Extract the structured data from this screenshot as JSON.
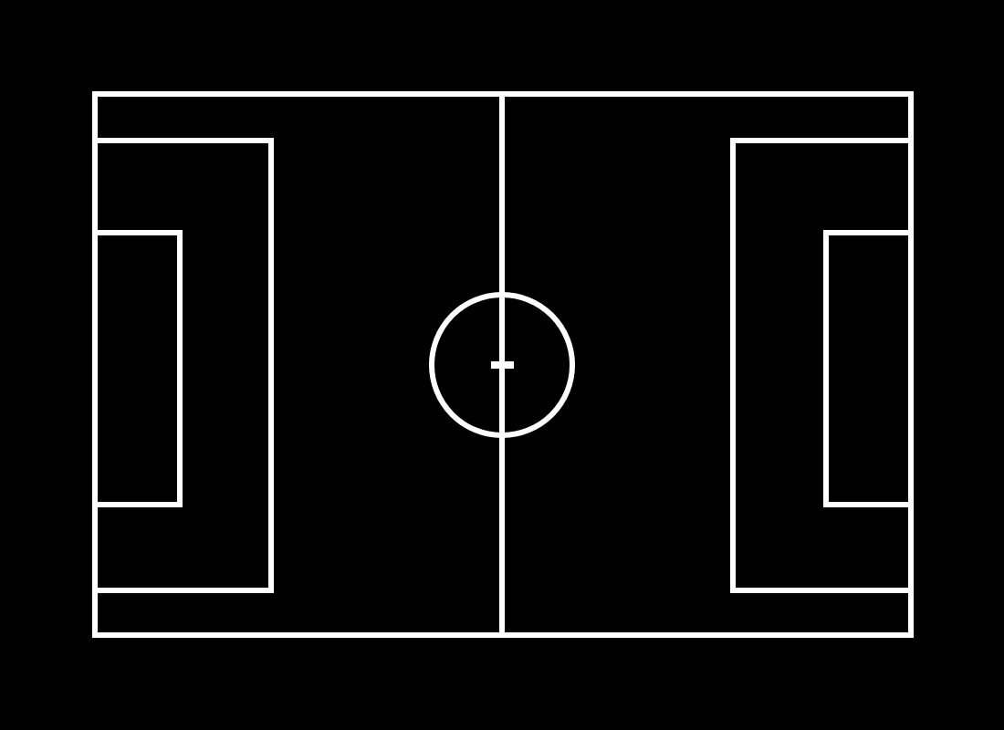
{
  "diagram": {
    "background_color": "#000000",
    "line_color": "#ffffff",
    "elements": [
      "outer-boundary",
      "halfway-line",
      "center-circle",
      "center-spot",
      "left-penalty-area",
      "left-goal-area",
      "right-penalty-area",
      "right-goal-area"
    ]
  }
}
